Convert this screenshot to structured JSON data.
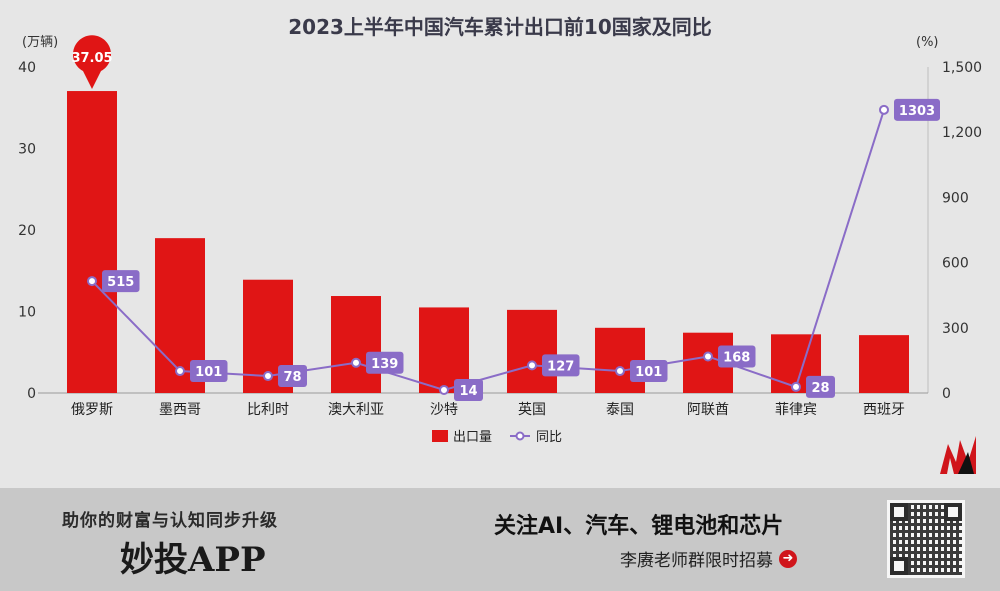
{
  "chart_data": {
    "type": "bar",
    "title": "2023上半年中国汽车累计出口前10国家及同比",
    "categories": [
      "俄罗斯",
      "墨西哥",
      "比利时",
      "澳大利亚",
      "沙特",
      "英国",
      "泰国",
      "阿联酋",
      "菲律宾",
      "西班牙"
    ],
    "series": [
      {
        "name": "出口量",
        "type": "bar",
        "axis": "left",
        "values": [
          37.05,
          19.0,
          13.9,
          11.9,
          10.5,
          10.2,
          8.0,
          7.4,
          7.2,
          7.1
        ]
      },
      {
        "name": "同比",
        "type": "line",
        "axis": "right",
        "values": [
          515,
          101,
          78,
          139,
          14,
          127,
          101,
          168,
          28,
          1303
        ]
      }
    ],
    "y_left": {
      "unit": "(万辆)",
      "ylim": [
        0,
        40
      ],
      "ticks": [
        "0",
        "10",
        "20",
        "30",
        "40"
      ]
    },
    "y_right": {
      "unit": "(%)",
      "ylim": [
        0,
        1500
      ],
      "ticks": [
        "0",
        "300",
        "600",
        "900",
        "1,200",
        "1,500"
      ]
    },
    "top_label": "37.05",
    "bar_color": "#e01515",
    "line_color": "#8a6cc7",
    "legend_position": "bottom-center",
    "grid": false
  },
  "banner": {
    "slogan": "助你的财富与认知同步升级",
    "brand": "妙投APP",
    "headline": "关注AI、汽车、锂电池和芯片",
    "subline": "李赓老师群限时招募",
    "arrow_icon": "arrow-right-circle-icon",
    "qr_icon": "qr-code-icon",
    "logo_icon": "brand-m-logo-icon"
  }
}
